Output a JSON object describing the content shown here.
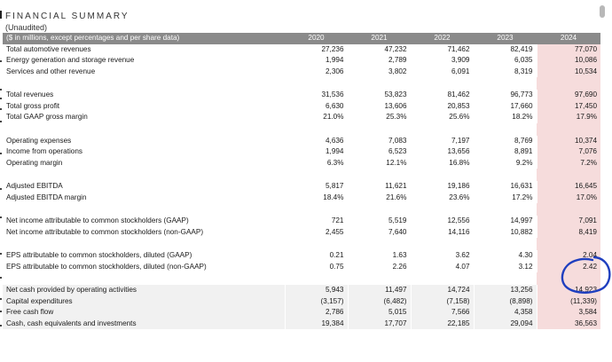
{
  "document": {
    "title": "FINANCIAL SUMMARY",
    "subtitle": "(Unaudited)"
  },
  "table": {
    "header_label": "($ in millions, except percentages and per share data)",
    "years": [
      "2020",
      "2021",
      "2022",
      "2023",
      "2024"
    ],
    "groups": [
      {
        "rows": [
          {
            "label": "Total automotive revenues",
            "values": [
              "27,236",
              "47,232",
              "71,462",
              "82,419",
              "77,070"
            ]
          },
          {
            "label": "Energy generation and storage revenue",
            "values": [
              "1,994",
              "2,789",
              "3,909",
              "6,035",
              "10,086"
            ]
          },
          {
            "label": "Services and other revenue",
            "values": [
              "2,306",
              "3,802",
              "6,091",
              "8,319",
              "10,534"
            ]
          }
        ]
      },
      {
        "rows": [
          {
            "label": "Total revenues",
            "values": [
              "31,536",
              "53,823",
              "81,462",
              "96,773",
              "97,690"
            ]
          },
          {
            "label": "Total gross profit",
            "values": [
              "6,630",
              "13,606",
              "20,853",
              "17,660",
              "17,450"
            ]
          },
          {
            "label": "Total GAAP gross margin",
            "values": [
              "21.0%",
              "25.3%",
              "25.6%",
              "18.2%",
              "17.9%"
            ]
          }
        ]
      },
      {
        "rows": [
          {
            "label": "Operating expenses",
            "values": [
              "4,636",
              "7,083",
              "7,197",
              "8,769",
              "10,374"
            ]
          },
          {
            "label": "Income from operations",
            "values": [
              "1,994",
              "6,523",
              "13,656",
              "8,891",
              "7,076"
            ]
          },
          {
            "label": "Operating margin",
            "values": [
              "6.3%",
              "12.1%",
              "16.8%",
              "9.2%",
              "7.2%"
            ]
          }
        ]
      },
      {
        "rows": [
          {
            "label": "Adjusted EBITDA",
            "values": [
              "5,817",
              "11,621",
              "19,186",
              "16,631",
              "16,645"
            ]
          },
          {
            "label": "Adjusted EBITDA margin",
            "values": [
              "18.4%",
              "21.6%",
              "23.6%",
              "17.2%",
              "17.0%"
            ]
          }
        ]
      },
      {
        "rows": [
          {
            "label": "Net income attributable to common stockholders (GAAP)",
            "values": [
              "721",
              "5,519",
              "12,556",
              "14,997",
              "7,091"
            ]
          },
          {
            "label": "Net income attributable to common stockholders (non-GAAP)",
            "values": [
              "2,455",
              "7,640",
              "14,116",
              "10,882",
              "8,419"
            ]
          }
        ]
      },
      {
        "rows": [
          {
            "label": "EPS attributable to common stockholders, diluted (GAAP)",
            "values": [
              "0.21",
              "1.63",
              "3.62",
              "4.30",
              "2.04"
            ]
          },
          {
            "label": "EPS attributable to common stockholders, diluted (non-GAAP)",
            "values": [
              "0.75",
              "2.26",
              "4.07",
              "3.12",
              "2.42"
            ]
          }
        ]
      },
      {
        "rows": [
          {
            "label": "Net cash provided by operating activities",
            "values": [
              "5,943",
              "11,497",
              "14,724",
              "13,256",
              "14,923"
            ]
          },
          {
            "label": "Capital expenditures",
            "values": [
              "(3,157)",
              "(6,482)",
              "(7,158)",
              "(8,898)",
              "(11,339)"
            ]
          },
          {
            "label": "Free cash flow",
            "values": [
              "2,786",
              "5,015",
              "7,566",
              "4,358",
              "3,584"
            ]
          },
          {
            "label": "Cash, cash equivalents and investments",
            "values": [
              "19,384",
              "17,707",
              "22,185",
              "29,094",
              "36,563"
            ]
          }
        ]
      }
    ]
  },
  "colors": {
    "header_bg": "#8a8a8a",
    "highlight_2024": "#f6dcdc",
    "annotation_circle": "#1f3fbf"
  }
}
